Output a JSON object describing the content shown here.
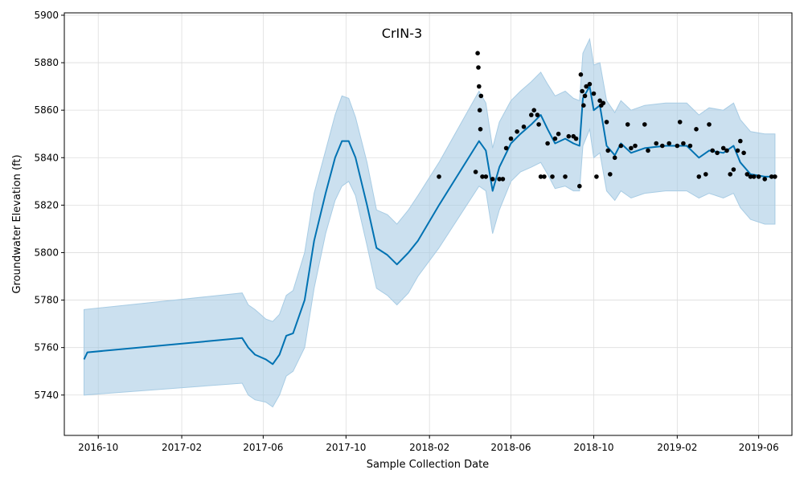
{
  "chart_data": {
    "type": "line",
    "title": "CrIN-3",
    "xlabel": "Sample Collection Date",
    "ylabel": "Groundwater Elevation (ft)",
    "xlim": [
      "2016-08-12",
      "2019-07-20"
    ],
    "ylim": [
      5723,
      5901
    ],
    "x_ticks": [
      "2016-10",
      "2017-02",
      "2017-06",
      "2017-10",
      "2018-02",
      "2018-06",
      "2018-10",
      "2019-02",
      "2019-06"
    ],
    "y_ticks": [
      5740,
      5760,
      5780,
      5800,
      5820,
      5840,
      5860,
      5880,
      5900
    ],
    "grid": true,
    "colors": {
      "forecast": "#0072b2",
      "band": "#a8cce4",
      "observed": "#000000"
    },
    "series": [
      {
        "type": "line",
        "x": [
          "2016-09-10",
          "2016-09-15",
          "2017-05-01",
          "2017-05-10",
          "2017-05-20",
          "2017-06-05",
          "2017-06-15",
          "2017-06-25",
          "2017-07-05",
          "2017-07-15",
          "2017-08-01",
          "2017-08-15",
          "2017-09-01",
          "2017-09-15",
          "2017-09-25",
          "2017-10-05",
          "2017-10-15",
          "2017-11-01",
          "2017-11-15",
          "2017-12-01",
          "2017-12-15",
          "2018-01-01",
          "2018-01-15",
          "2018-02-15",
          "2018-04-15",
          "2018-04-25",
          "2018-05-05",
          "2018-05-15",
          "2018-06-01",
          "2018-06-15",
          "2018-07-01",
          "2018-07-15",
          "2018-07-25",
          "2018-08-05",
          "2018-08-20",
          "2018-09-01",
          "2018-09-10",
          "2018-09-15",
          "2018-09-25",
          "2018-10-01",
          "2018-10-10",
          "2018-10-20",
          "2018-11-01",
          "2018-11-10",
          "2018-11-25",
          "2018-12-15",
          "2019-01-15",
          "2019-02-15",
          "2019-03-05",
          "2019-03-20",
          "2019-04-10",
          "2019-04-25",
          "2019-05-05",
          "2019-05-20",
          "2019-06-10",
          "2019-06-25"
        ],
        "y": [
          5755,
          5758,
          5764,
          5760,
          5757,
          5755,
          5753,
          5757,
          5765,
          5766,
          5780,
          5805,
          5825,
          5840,
          5847,
          5847,
          5840,
          5820,
          5802,
          5799,
          5795,
          5800,
          5805,
          5820,
          5847,
          5843,
          5826,
          5836,
          5846,
          5850,
          5854,
          5858,
          5852,
          5846,
          5848,
          5846,
          5845,
          5865,
          5870,
          5860,
          5862,
          5845,
          5841,
          5846,
          5842,
          5844,
          5845,
          5845,
          5840,
          5843,
          5842,
          5845,
          5838,
          5833,
          5832,
          5832
        ]
      },
      {
        "type": "band",
        "x": [
          "2016-09-10",
          "2017-05-01",
          "2017-05-10",
          "2017-05-20",
          "2017-06-05",
          "2017-06-15",
          "2017-06-25",
          "2017-07-05",
          "2017-07-15",
          "2017-08-01",
          "2017-08-15",
          "2017-09-01",
          "2017-09-15",
          "2017-09-25",
          "2017-10-05",
          "2017-10-15",
          "2017-11-01",
          "2017-11-15",
          "2017-12-01",
          "2017-12-15",
          "2018-01-01",
          "2018-01-15",
          "2018-02-15",
          "2018-04-15",
          "2018-04-25",
          "2018-05-05",
          "2018-05-15",
          "2018-06-01",
          "2018-06-15",
          "2018-07-01",
          "2018-07-15",
          "2018-07-25",
          "2018-08-05",
          "2018-08-20",
          "2018-09-01",
          "2018-09-10",
          "2018-09-15",
          "2018-09-25",
          "2018-10-01",
          "2018-10-10",
          "2018-10-20",
          "2018-11-01",
          "2018-11-10",
          "2018-11-25",
          "2018-12-15",
          "2019-01-15",
          "2019-02-15",
          "2019-03-05",
          "2019-03-20",
          "2019-04-10",
          "2019-04-25",
          "2019-05-05",
          "2019-05-20",
          "2019-06-10",
          "2019-06-25"
        ],
        "lower": [
          5740,
          5745,
          5740,
          5738,
          5737,
          5735,
          5740,
          5748,
          5750,
          5760,
          5785,
          5808,
          5822,
          5828,
          5830,
          5824,
          5803,
          5785,
          5782,
          5778,
          5783,
          5790,
          5802,
          5828,
          5826,
          5808,
          5818,
          5830,
          5834,
          5836,
          5838,
          5833,
          5827,
          5828,
          5826,
          5826,
          5845,
          5852,
          5840,
          5842,
          5826,
          5822,
          5826,
          5823,
          5825,
          5826,
          5826,
          5823,
          5825,
          5823,
          5825,
          5819,
          5814,
          5812,
          5812
        ],
        "upper": [
          5776,
          5783,
          5778,
          5776,
          5772,
          5771,
          5774,
          5782,
          5784,
          5800,
          5825,
          5843,
          5858,
          5866,
          5865,
          5857,
          5838,
          5818,
          5816,
          5812,
          5818,
          5824,
          5838,
          5868,
          5863,
          5844,
          5855,
          5864,
          5868,
          5872,
          5876,
          5871,
          5866,
          5868,
          5865,
          5864,
          5884,
          5890,
          5879,
          5880,
          5864,
          5859,
          5864,
          5860,
          5862,
          5863,
          5863,
          5858,
          5861,
          5860,
          5863,
          5856,
          5851,
          5850,
          5850
        ]
      },
      {
        "type": "scatter",
        "x": [
          "2018-02-15",
          "2018-04-10",
          "2018-04-13",
          "2018-04-14",
          "2018-04-15",
          "2018-04-16",
          "2018-04-17",
          "2018-04-18",
          "2018-04-20",
          "2018-04-25",
          "2018-05-05",
          "2018-05-15",
          "2018-05-20",
          "2018-05-25",
          "2018-06-01",
          "2018-06-10",
          "2018-06-20",
          "2018-07-01",
          "2018-07-05",
          "2018-07-10",
          "2018-07-12",
          "2018-07-15",
          "2018-07-20",
          "2018-07-25",
          "2018-08-01",
          "2018-08-05",
          "2018-08-10",
          "2018-08-20",
          "2018-08-25",
          "2018-09-01",
          "2018-09-05",
          "2018-09-10",
          "2018-09-12",
          "2018-09-14",
          "2018-09-16",
          "2018-09-18",
          "2018-09-20",
          "2018-09-25",
          "2018-10-01",
          "2018-10-05",
          "2018-10-10",
          "2018-10-12",
          "2018-10-15",
          "2018-10-20",
          "2018-10-22",
          "2018-10-25",
          "2018-11-01",
          "2018-11-10",
          "2018-11-20",
          "2018-11-25",
          "2018-12-01",
          "2018-12-15",
          "2018-12-20",
          "2019-01-01",
          "2019-01-10",
          "2019-01-20",
          "2019-02-01",
          "2019-02-05",
          "2019-02-10",
          "2019-02-20",
          "2019-03-01",
          "2019-03-05",
          "2019-03-15",
          "2019-03-20",
          "2019-03-25",
          "2019-04-01",
          "2019-04-10",
          "2019-04-15",
          "2019-04-20",
          "2019-04-25",
          "2019-05-01",
          "2019-05-05",
          "2019-05-10",
          "2019-05-15",
          "2019-05-20",
          "2019-05-25",
          "2019-06-01",
          "2019-06-10",
          "2019-06-20",
          "2019-06-25"
        ],
        "y": [
          5832,
          5834,
          5884,
          5878,
          5870,
          5860,
          5852,
          5866,
          5832,
          5832,
          5831,
          5831,
          5831,
          5844,
          5848,
          5851,
          5853,
          5858,
          5860,
          5858,
          5854,
          5832,
          5832,
          5846,
          5832,
          5848,
          5850,
          5832,
          5849,
          5849,
          5848,
          5828,
          5875,
          5868,
          5862,
          5866,
          5870,
          5871,
          5867,
          5832,
          5864,
          5862,
          5863,
          5855,
          5843,
          5833,
          5840,
          5845,
          5854,
          5844,
          5845,
          5854,
          5843,
          5846,
          5845,
          5846,
          5845,
          5855,
          5846,
          5845,
          5852,
          5832,
          5833,
          5854,
          5843,
          5842,
          5844,
          5843,
          5833,
          5835,
          5843,
          5847,
          5842,
          5833,
          5832,
          5832,
          5832,
          5831,
          5832,
          5832
        ]
      }
    ]
  }
}
